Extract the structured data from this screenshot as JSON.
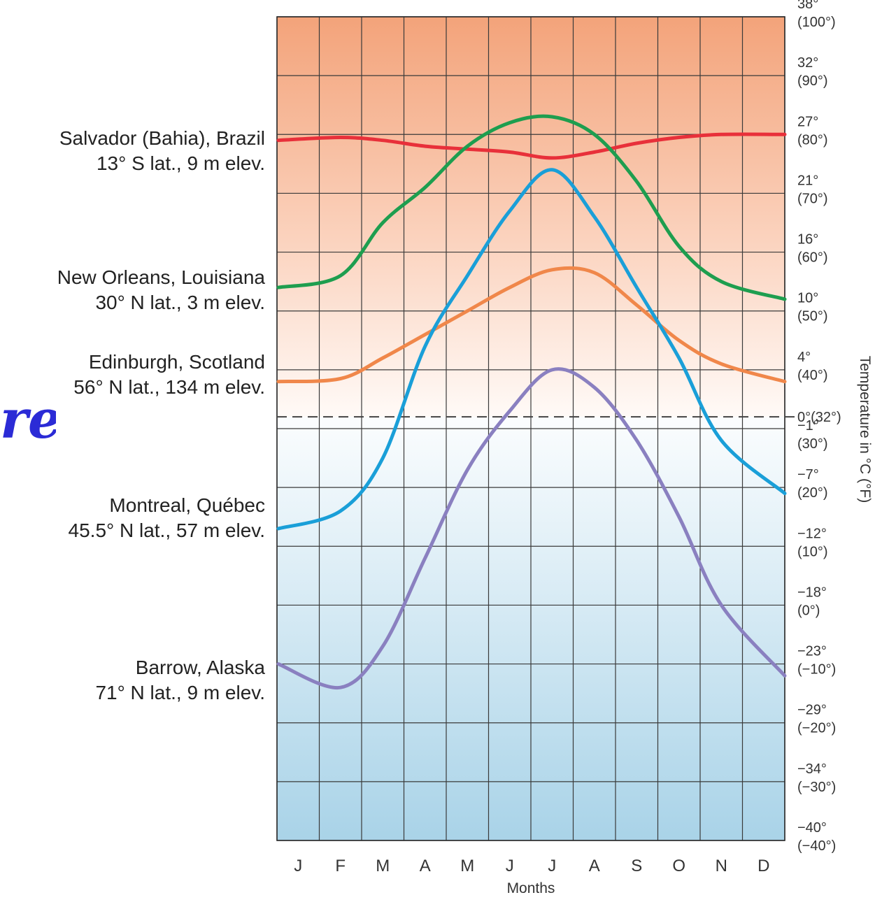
{
  "stray_text": "re",
  "cities": [
    {
      "name": "Salvador (Bahia), Brazil",
      "detail": "13° S lat., 9 m elev."
    },
    {
      "name": "New Orleans, Louisiana",
      "detail": "30° N lat., 3 m elev."
    },
    {
      "name": "Edinburgh, Scotland",
      "detail": "56° N lat., 134 m elev."
    },
    {
      "name": "Montreal, Québec",
      "detail": "45.5° N lat., 57 m elev."
    },
    {
      "name": "Barrow, Alaska",
      "detail": "71° N lat., 9 m elev."
    }
  ],
  "chart_data": {
    "type": "line",
    "xlabel": "Months",
    "ylabel": "Temperature in °C (°F)",
    "x": [
      "J",
      "F",
      "M",
      "A",
      "M",
      "J",
      "J",
      "A",
      "S",
      "O",
      "N",
      "D"
    ],
    "ylim_f": [
      -40,
      100
    ],
    "ytick_labels": [
      {
        "f": 100,
        "c_label": "38°",
        "f_label": "(100°)"
      },
      {
        "f": 90,
        "c_label": "32°",
        "f_label": "(90°)"
      },
      {
        "f": 80,
        "c_label": "27°",
        "f_label": "(80°)"
      },
      {
        "f": 70,
        "c_label": "21°",
        "f_label": "(70°)"
      },
      {
        "f": 60,
        "c_label": "16°",
        "f_label": "(60°)"
      },
      {
        "f": 50,
        "c_label": "10°",
        "f_label": "(50°)"
      },
      {
        "f": 40,
        "c_label": "4°",
        "f_label": "(40°)"
      },
      {
        "f": 32,
        "c_label": "0°(32°)",
        "f_label": ""
      },
      {
        "f": 30,
        "c_label": "−1°",
        "f_label": "(30°)"
      },
      {
        "f": 20,
        "c_label": "−7°",
        "f_label": "(20°)"
      },
      {
        "f": 10,
        "c_label": "−12°",
        "f_label": "(10°)"
      },
      {
        "f": 0,
        "c_label": "−18°",
        "f_label": "(0°)"
      },
      {
        "f": -10,
        "c_label": "−23°",
        "f_label": "(−10°)"
      },
      {
        "f": -20,
        "c_label": "−29°",
        "f_label": "(−20°)"
      },
      {
        "f": -30,
        "c_label": "−34°",
        "f_label": "(−30°)"
      },
      {
        "f": -40,
        "c_label": "−40°",
        "f_label": "(−40°)"
      }
    ],
    "series": [
      {
        "color": "#e8303a",
        "values": [
          79,
          79.5,
          79,
          78,
          77.5,
          77,
          76,
          77,
          78.5,
          79.5,
          80,
          80
        ]
      },
      {
        "color": "#1e9e4f",
        "values": [
          54,
          56,
          65,
          71,
          78,
          82,
          83,
          80,
          72,
          61,
          55,
          52
        ]
      },
      {
        "color": "#f0874a",
        "values": [
          38,
          38.5,
          42,
          46,
          50,
          54,
          57,
          56.5,
          51,
          45,
          41,
          38
        ]
      },
      {
        "color": "#1a9fd8",
        "values": [
          13,
          16,
          25,
          44,
          56,
          67,
          74,
          66,
          54,
          42,
          28,
          19
        ]
      },
      {
        "color": "#8a80c0",
        "values": [
          -10,
          -14,
          -7,
          8,
          23,
          33,
          40,
          37,
          28,
          15,
          0,
          -12
        ]
      }
    ]
  }
}
